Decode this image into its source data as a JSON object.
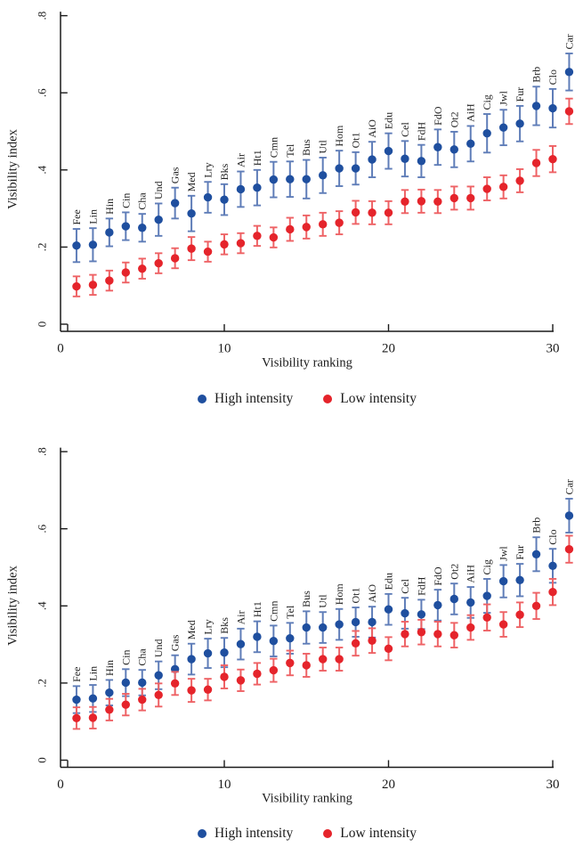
{
  "page": {
    "background": "#ffffff",
    "text_color": "#1a1a1a",
    "axis_color": "#1a1a1a"
  },
  "chart_data": [
    {
      "type": "scatter",
      "panel": "top",
      "title": "",
      "xlabel": "Visibility ranking",
      "ylabel": "Visibility index",
      "x_ticks": [
        0,
        10,
        20,
        30
      ],
      "x_tick_labels": [
        "0",
        "10",
        "20",
        "30"
      ],
      "y_ticks": [
        0.8,
        0.6,
        0.4,
        0.2,
        0
      ],
      "y_tick_labels": [
        ".8",
        ".6",
        ".4",
        ".2",
        "0"
      ],
      "ylim": [
        0,
        0.8
      ],
      "grid": false,
      "legend_position": "bottom",
      "error_bars": true,
      "categories": [
        "Fee",
        "Lin",
        "Hin",
        "Cin",
        "Cha",
        "Und",
        "Gas",
        "Med",
        "Lry",
        "Bks",
        "Air",
        "Ht1",
        "Cmn",
        "Tel",
        "Bus",
        "Utl",
        "Hom",
        "Ot1",
        "AiO",
        "Edu",
        "Cel",
        "FdH",
        "FdO",
        "Ot2",
        "AiH",
        "Cig",
        "Jwl",
        "Fur",
        "Brb",
        "Clo",
        "Car"
      ],
      "series": [
        {
          "name": "High intensity",
          "color": "#1f4f9f",
          "bar_color": "#5f7db8",
          "values": [
            0.204,
            0.206,
            0.238,
            0.254,
            0.25,
            0.271,
            0.314,
            0.287,
            0.329,
            0.323,
            0.35,
            0.354,
            0.375,
            0.376,
            0.376,
            0.386,
            0.404,
            0.404,
            0.427,
            0.449,
            0.429,
            0.423,
            0.459,
            0.453,
            0.468,
            0.495,
            0.51,
            0.52,
            0.566,
            0.56,
            0.654
          ],
          "errors": [
            0.043,
            0.043,
            0.036,
            0.036,
            0.036,
            0.042,
            0.04,
            0.046,
            0.04,
            0.04,
            0.046,
            0.046,
            0.046,
            0.046,
            0.05,
            0.046,
            0.046,
            0.042,
            0.046,
            0.046,
            0.046,
            0.042,
            0.046,
            0.046,
            0.046,
            0.05,
            0.046,
            0.046,
            0.05,
            0.05,
            0.048
          ]
        },
        {
          "name": "Low intensity",
          "color": "#e5242b",
          "bar_color": "#ee6265",
          "values": [
            0.098,
            0.102,
            0.113,
            0.134,
            0.144,
            0.158,
            0.171,
            0.196,
            0.188,
            0.207,
            0.21,
            0.229,
            0.225,
            0.246,
            0.252,
            0.259,
            0.263,
            0.29,
            0.289,
            0.289,
            0.318,
            0.319,
            0.318,
            0.327,
            0.327,
            0.351,
            0.356,
            0.372,
            0.418,
            0.428,
            0.552
          ],
          "errors": [
            0.026,
            0.026,
            0.026,
            0.026,
            0.026,
            0.026,
            0.026,
            0.03,
            0.026,
            0.026,
            0.026,
            0.026,
            0.026,
            0.03,
            0.03,
            0.03,
            0.03,
            0.03,
            0.03,
            0.03,
            0.03,
            0.03,
            0.03,
            0.03,
            0.03,
            0.03,
            0.03,
            0.03,
            0.034,
            0.034,
            0.033
          ]
        }
      ]
    },
    {
      "type": "scatter",
      "panel": "bottom",
      "title": "",
      "xlabel": "Visibility ranking",
      "ylabel": "Visibility index",
      "x_ticks": [
        0,
        10,
        20,
        30
      ],
      "x_tick_labels": [
        "0",
        "10",
        "20",
        "30"
      ],
      "y_ticks": [
        0.8,
        0.6,
        0.4,
        0.2,
        0
      ],
      "y_tick_labels": [
        ".8",
        ".6",
        ".4",
        ".2",
        "0"
      ],
      "ylim": [
        0,
        0.8
      ],
      "grid": false,
      "legend_position": "bottom",
      "error_bars": true,
      "categories": [
        "Fee",
        "Lin",
        "Hin",
        "Cin",
        "Cha",
        "Und",
        "Gas",
        "Med",
        "Lry",
        "Bks",
        "Air",
        "Ht1",
        "Cmn",
        "Tel",
        "Bus",
        "Utl",
        "Hom",
        "Ot1",
        "AiO",
        "Edu",
        "Cel",
        "FdH",
        "FdO",
        "Ot2",
        "AiH",
        "Cig",
        "Jwl",
        "Fur",
        "Brb",
        "Clo",
        "Car"
      ],
      "series": [
        {
          "name": "High intensity",
          "color": "#1f4f9f",
          "bar_color": "#5f7db8",
          "values": [
            0.157,
            0.16,
            0.175,
            0.201,
            0.201,
            0.22,
            0.236,
            0.262,
            0.277,
            0.279,
            0.301,
            0.32,
            0.309,
            0.316,
            0.344,
            0.344,
            0.352,
            0.358,
            0.358,
            0.391,
            0.381,
            0.378,
            0.402,
            0.418,
            0.409,
            0.426,
            0.464,
            0.467,
            0.534,
            0.504,
            0.634
          ],
          "errors": [
            0.035,
            0.035,
            0.033,
            0.035,
            0.033,
            0.036,
            0.036,
            0.04,
            0.038,
            0.038,
            0.04,
            0.04,
            0.04,
            0.04,
            0.042,
            0.04,
            0.04,
            0.038,
            0.04,
            0.04,
            0.04,
            0.038,
            0.04,
            0.04,
            0.04,
            0.044,
            0.042,
            0.042,
            0.044,
            0.044,
            0.044
          ]
        },
        {
          "name": "Low intensity",
          "color": "#e5242b",
          "bar_color": "#ee6265",
          "values": [
            0.109,
            0.11,
            0.131,
            0.144,
            0.157,
            0.169,
            0.199,
            0.181,
            0.183,
            0.216,
            0.207,
            0.224,
            0.233,
            0.252,
            0.246,
            0.262,
            0.262,
            0.303,
            0.31,
            0.289,
            0.327,
            0.332,
            0.327,
            0.324,
            0.344,
            0.37,
            0.352,
            0.377,
            0.4,
            0.436,
            0.547
          ],
          "errors": [
            0.028,
            0.028,
            0.028,
            0.028,
            0.028,
            0.03,
            0.03,
            0.03,
            0.028,
            0.03,
            0.028,
            0.028,
            0.03,
            0.032,
            0.03,
            0.03,
            0.03,
            0.032,
            0.032,
            0.03,
            0.032,
            0.032,
            0.032,
            0.032,
            0.032,
            0.034,
            0.032,
            0.032,
            0.034,
            0.034,
            0.035
          ]
        }
      ]
    }
  ]
}
